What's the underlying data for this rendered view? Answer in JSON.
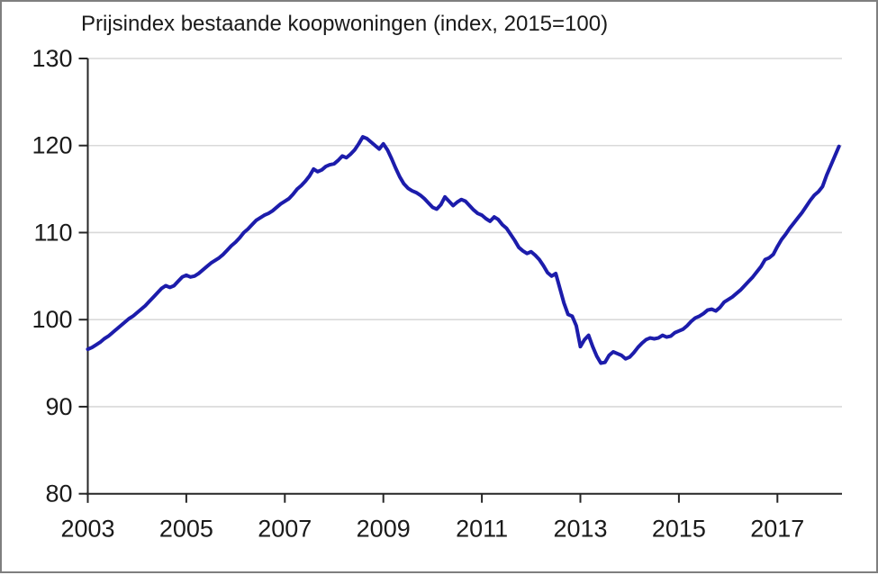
{
  "frame": {
    "border_color": "#7f7f7f",
    "background": "#ffffff"
  },
  "chart_data": {
    "type": "line",
    "title": "Prijsindex bestaande koopwoningen (index, 2015=100)",
    "xlabel": "",
    "ylabel": "",
    "grid": true,
    "legend_position": "none",
    "y_axis": {
      "min": 80,
      "max": 130,
      "tick_interval": 10,
      "ticks": [
        130,
        120,
        110,
        100,
        90,
        80
      ]
    },
    "x_axis": {
      "start_year": 2003,
      "end": 2018.25,
      "tick_years": [
        2003,
        2005,
        2007,
        2009,
        2011,
        2013,
        2015,
        2017
      ],
      "frequency": "monthly"
    },
    "series": [
      {
        "name": "Prijsindex bestaande koopwoningen",
        "color": "#1c1cab",
        "stroke_width": 4,
        "start_year": 2003,
        "start_month": 1,
        "values": [
          96.6,
          96.8,
          97.1,
          97.4,
          97.8,
          98.1,
          98.5,
          98.9,
          99.3,
          99.7,
          100.1,
          100.4,
          100.8,
          101.2,
          101.6,
          102.1,
          102.6,
          103.1,
          103.6,
          103.9,
          103.7,
          103.9,
          104.4,
          104.9,
          105.1,
          104.9,
          105.0,
          105.3,
          105.7,
          106.1,
          106.5,
          106.8,
          107.1,
          107.5,
          108.0,
          108.5,
          108.9,
          109.4,
          110.0,
          110.4,
          110.9,
          111.4,
          111.7,
          112.0,
          112.2,
          112.5,
          112.9,
          113.3,
          113.6,
          113.9,
          114.4,
          115.0,
          115.4,
          115.9,
          116.5,
          117.3,
          117.0,
          117.2,
          117.6,
          117.8,
          117.9,
          118.3,
          118.8,
          118.6,
          119.0,
          119.5,
          120.2,
          121.0,
          120.8,
          120.4,
          120.0,
          119.6,
          120.2,
          119.5,
          118.5,
          117.4,
          116.4,
          115.6,
          115.1,
          114.8,
          114.6,
          114.3,
          113.9,
          113.4,
          112.9,
          112.7,
          113.2,
          114.1,
          113.6,
          113.1,
          113.5,
          113.8,
          113.6,
          113.1,
          112.6,
          112.2,
          112.0,
          111.6,
          111.3,
          111.8,
          111.5,
          110.9,
          110.5,
          109.8,
          109.1,
          108.3,
          107.9,
          107.6,
          107.8,
          107.4,
          106.9,
          106.2,
          105.4,
          105.0,
          105.3,
          103.6,
          101.9,
          100.6,
          100.4,
          99.3,
          96.9,
          97.7,
          98.2,
          96.9,
          95.8,
          95.0,
          95.1,
          95.9,
          96.3,
          96.1,
          95.9,
          95.5,
          95.7,
          96.2,
          96.8,
          97.3,
          97.7,
          97.9,
          97.8,
          97.9,
          98.2,
          98.0,
          98.1,
          98.5,
          98.7,
          98.9,
          99.3,
          99.8,
          100.2,
          100.4,
          100.7,
          101.1,
          101.2,
          101.0,
          101.4,
          102.0,
          102.3,
          102.6,
          103.0,
          103.4,
          103.9,
          104.4,
          104.9,
          105.5,
          106.1,
          106.9,
          107.1,
          107.5,
          108.4,
          109.2,
          109.8,
          110.5,
          111.1,
          111.7,
          112.3,
          113.0,
          113.7,
          114.3,
          114.7,
          115.3,
          116.6,
          117.7,
          118.8,
          119.9
        ]
      }
    ]
  }
}
